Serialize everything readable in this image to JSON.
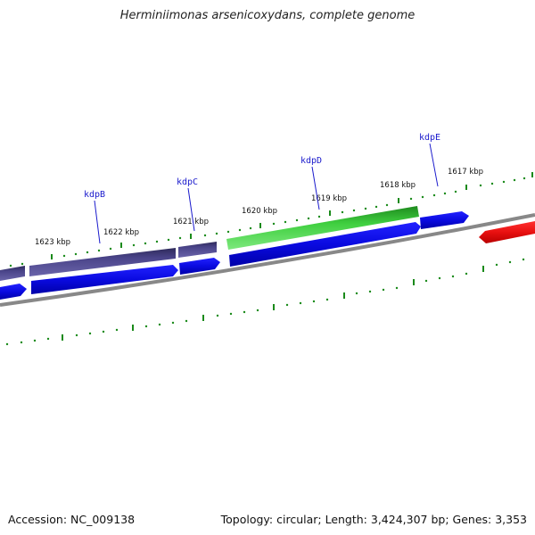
{
  "title": "Herminiimonas arsenicoxydans, complete genome",
  "footer": {
    "accession": "Accession: NC_009138",
    "stats": "Topology: circular; Length: 3,424,307 bp; Genes: 3,353"
  },
  "ruler": {
    "labels": [
      "1617 kbp",
      "1618 kbp",
      "1619 kbp",
      "1620 kbp",
      "1621 kbp",
      "1622 kbp",
      "1623 kbp"
    ]
  },
  "genes": {
    "labels": [
      "kdpE",
      "kdpD",
      "kdpC",
      "kdpB"
    ]
  },
  "colors": {
    "backbone": "#888888",
    "gene_forward_purple": "#4a4489",
    "gene_forward_green": "#3fcf3f",
    "gene_reverse_blue": "#1010e0",
    "gene_red": "#e81010",
    "tick_green": "#1a8a1a",
    "label_blue": "#1a1acc"
  }
}
